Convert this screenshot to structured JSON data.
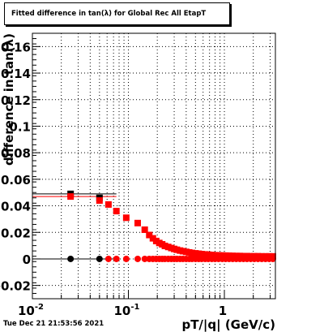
{
  "header": {
    "title": "Fitted difference in tan(λ) for Global Rec All EtapT"
  },
  "footer": {
    "timestamp": "Tue Dec 21 21:53:56 2021"
  },
  "colors": {
    "black_series": "#000000",
    "red_series": "#ff0000",
    "grid": "#000000",
    "background": "#ffffff"
  },
  "chart_data": {
    "type": "scatter",
    "title": "Fitted difference in tan(λ) for Global Rec All EtapT",
    "xlabel": "pT/|q| (GeV/c)",
    "ylabel": "difference in tan(λ)",
    "xscale": "log",
    "xlim": [
      0.01,
      3.4
    ],
    "ylim": [
      -0.03,
      0.17
    ],
    "grid": true,
    "x_ticks": [
      {
        "value": 0.01,
        "label": "10",
        "exp": "-2"
      },
      {
        "value": 0.1,
        "label": "10",
        "exp": "-1"
      },
      {
        "value": 1,
        "label": "1",
        "exp": ""
      }
    ],
    "y_ticks": [
      {
        "value": -0.02,
        "label": "-0.02"
      },
      {
        "value": 0,
        "label": "0"
      },
      {
        "value": 0.02,
        "label": "0.02"
      },
      {
        "value": 0.04,
        "label": "0.04"
      },
      {
        "value": 0.06,
        "label": "0.06"
      },
      {
        "value": 0.08,
        "label": "0.08"
      },
      {
        "value": 0.1,
        "label": "0.1"
      },
      {
        "value": 0.12,
        "label": "0.12"
      },
      {
        "value": 0.14,
        "label": "0.14"
      },
      {
        "value": 0.16,
        "label": "0.16"
      }
    ],
    "series": [
      {
        "color": "#000000",
        "marker": "square",
        "x": [
          0.025,
          0.05
        ],
        "y": [
          0.049,
          0.046
        ]
      },
      {
        "color": "#000000",
        "marker": "circle",
        "x": [
          0.025,
          0.05
        ],
        "y": [
          0,
          0
        ]
      },
      {
        "color": "#ff0000",
        "marker": "square",
        "x": [
          0.025,
          0.05,
          0.062,
          0.075,
          0.095,
          0.125,
          0.148,
          0.165,
          0.18,
          0.195,
          0.21,
          0.225,
          0.24,
          0.26,
          0.28,
          0.3,
          0.32,
          0.345,
          0.37,
          0.4,
          0.43,
          0.46,
          0.5,
          0.54,
          0.58,
          0.63,
          0.68,
          0.74,
          0.8,
          0.87,
          0.95,
          1.03,
          1.12,
          1.22,
          1.33,
          1.45,
          1.58,
          1.72,
          1.88,
          2.05,
          2.24,
          2.45,
          2.68,
          2.93,
          3.2
        ],
        "y": [
          0.047,
          0.044,
          0.041,
          0.036,
          0.031,
          0.027,
          0.022,
          0.018,
          0.0155,
          0.0135,
          0.012,
          0.011,
          0.0098,
          0.009,
          0.0082,
          0.0075,
          0.0069,
          0.0063,
          0.0058,
          0.0053,
          0.0049,
          0.0045,
          0.0042,
          0.0039,
          0.0036,
          0.0034,
          0.0032,
          0.003,
          0.0028,
          0.0027,
          0.0026,
          0.0025,
          0.0024,
          0.0023,
          0.0022,
          0.0022,
          0.0021,
          0.0021,
          0.002,
          0.002,
          0.002,
          0.0019,
          0.0019,
          0.0019,
          0.0019
        ]
      },
      {
        "color": "#ff0000",
        "marker": "circle",
        "x": [
          0.062,
          0.075,
          0.095,
          0.125,
          0.148,
          0.165,
          0.18,
          0.195,
          0.21,
          0.225,
          0.24,
          0.26,
          0.28,
          0.3,
          0.32,
          0.345,
          0.37,
          0.4,
          0.43,
          0.46,
          0.5,
          0.54,
          0.58,
          0.63,
          0.68,
          0.74,
          0.8,
          0.87,
          0.95,
          1.03,
          1.12,
          1.22,
          1.33,
          1.45,
          1.58,
          1.72,
          1.88,
          2.05,
          2.24,
          2.45,
          2.68,
          2.93,
          3.2
        ],
        "y": [
          0,
          0,
          0,
          0,
          0,
          0,
          0,
          0,
          0,
          0,
          0,
          0,
          0,
          0,
          0,
          0,
          0,
          0,
          0,
          0,
          0,
          0,
          0,
          0,
          0,
          0,
          0,
          0,
          0,
          0,
          0,
          0,
          0,
          0,
          0,
          0,
          0,
          0,
          0,
          0,
          0,
          0,
          0
        ]
      }
    ],
    "horizontal_error_bars": [
      {
        "color": "#000000",
        "x_range": [
          0.01,
          0.075
        ],
        "y": 0.049
      },
      {
        "color": "#ff0000",
        "x_range": [
          0.01,
          0.075
        ],
        "y": 0.047
      },
      {
        "color": "#000000",
        "x_range": [
          0.01,
          0.075
        ],
        "y": 0.0
      }
    ]
  }
}
